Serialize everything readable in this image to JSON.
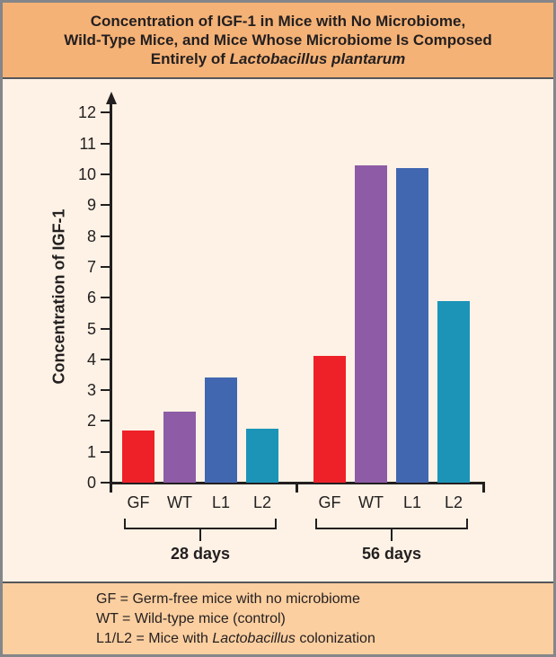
{
  "title": {
    "line1": "Concentration of IGF-1 in Mice with No Microbiome,",
    "line2": "Wild-Type Mice, and Mice Whose Microbiome Is Composed",
    "line3_prefix": "Entirely of ",
    "line3_italic": "Lactobacillus plantarum"
  },
  "legend": {
    "line1": "GF = Germ-free mice with no microbiome",
    "line2": "WT = Wild-type mice (control)",
    "line3_prefix": "L1/L2 = Mice with ",
    "line3_italic": "Lactobacillus",
    "line3_suffix": " colonization"
  },
  "colors": {
    "header_bg": "#f5b276",
    "footer_bg": "#fccfa0",
    "chart_bg": "#fdf2e5",
    "axis": "#231f20",
    "bar_red": "#ee2129",
    "bar_purple": "#8e5ba6",
    "bar_blue": "#4267b1",
    "bar_teal": "#1b94b8"
  },
  "chart_data": {
    "type": "bar",
    "title": "Concentration of IGF-1 in Mice with No Microbiome, Wild-Type Mice, and Mice Whose Microbiome Is Composed Entirely of Lactobacillus plantarum",
    "ylabel": "Concentration of IGF-1",
    "xlabel": "",
    "ylim": [
      0,
      12
    ],
    "ytick_step": 1,
    "grid": false,
    "legend_position": "none",
    "categories": [
      "GF",
      "WT",
      "L1",
      "L2"
    ],
    "bar_colors": [
      "#ee2129",
      "#8e5ba6",
      "#4267b1",
      "#1b94b8"
    ],
    "groups": [
      {
        "label": "28 days",
        "values": [
          1.7,
          2.3,
          3.4,
          1.75
        ]
      },
      {
        "label": "56 days",
        "values": [
          4.1,
          10.3,
          10.2,
          5.9
        ]
      }
    ]
  }
}
